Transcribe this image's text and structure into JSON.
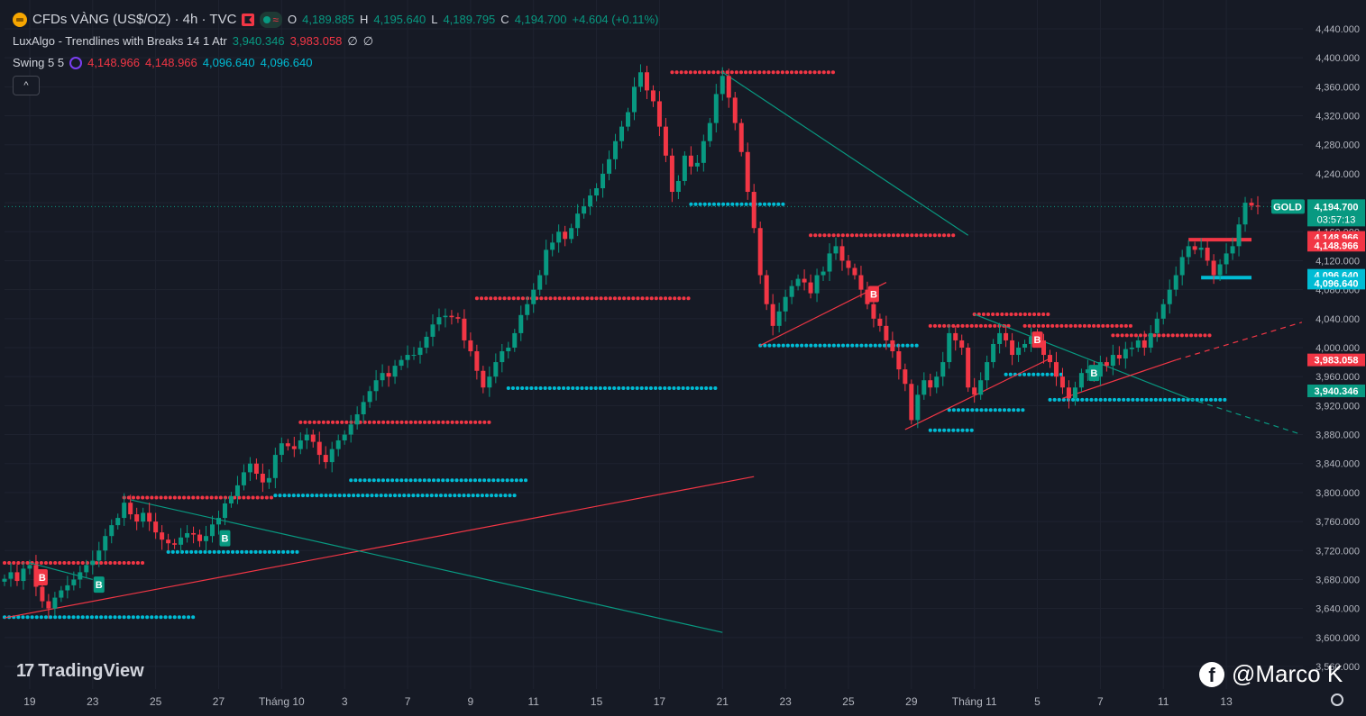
{
  "header": {
    "symbol_title": "CFDs VÀNG (US$/OZ) · 4h · TVC",
    "o_label": "O",
    "o_value": "4,189.885",
    "h_label": "H",
    "h_value": "4,195.640",
    "l_label": "L",
    "l_value": "4,189.795",
    "c_label": "C",
    "c_value": "4,194.700",
    "change": "+4.604 (+0.11%)"
  },
  "indicators": {
    "luxalgo_name": "LuxAlgo - Trendlines with Breaks 14 1 Atr",
    "luxalgo_v1": "3,940.346",
    "luxalgo_v2": "3,983.058",
    "luxalgo_v3": "∅",
    "luxalgo_v4": "∅",
    "swing_name": "Swing 5 5",
    "swing_v1": "4,148.966",
    "swing_v2": "4,148.966",
    "swing_v3": "4,096.640",
    "swing_v4": "4,096.640"
  },
  "collapse_label": "^",
  "branding": {
    "logo_text": "TradingView",
    "logo_mark": "17",
    "watermark": "@Marco K",
    "fb_letter": "f"
  },
  "colors": {
    "bg": "#161a25",
    "up": "#089981",
    "down": "#f23645",
    "cyan": "#00bcd4",
    "grid": "#1f2330"
  },
  "chart_data": {
    "type": "candlestick",
    "title": "CFDs VÀNG (US$/OZ) · 4h · TVC",
    "ylim": [
      3560,
      4440
    ],
    "y_ticks": [
      "4,440.000",
      "4,400.000",
      "4,360.000",
      "4,320.000",
      "4,280.000",
      "4,240.000",
      "4,200.000",
      "4,160.000",
      "4,120.000",
      "4,080.000",
      "4,040.000",
      "4,000.000",
      "3,960.000",
      "3,920.000",
      "3,880.000",
      "3,840.000",
      "3,800.000",
      "3,760.000",
      "3,720.000",
      "3,680.000",
      "3,640.000",
      "3,600.000",
      "3,560.000"
    ],
    "x_ticks": [
      "19",
      "23",
      "25",
      "27",
      "Tháng 10",
      "3",
      "7",
      "9",
      "11",
      "15",
      "17",
      "21",
      "23",
      "25",
      "29",
      "Tháng 11",
      "5",
      "7",
      "11",
      "13"
    ],
    "x_tick_index": [
      4,
      14,
      24,
      34,
      44,
      54,
      64,
      74,
      84,
      94,
      104,
      114,
      124,
      134,
      144,
      154,
      164,
      174,
      184,
      194
    ],
    "closes": [
      3681,
      3690,
      3678,
      3695,
      3700,
      3670,
      3650,
      3640,
      3655,
      3665,
      3672,
      3680,
      3690,
      3700,
      3706,
      3720,
      3740,
      3755,
      3765,
      3786,
      3770,
      3760,
      3772,
      3760,
      3745,
      3735,
      3730,
      3728,
      3738,
      3744,
      3742,
      3733,
      3740,
      3756,
      3765,
      3785,
      3795,
      3810,
      3828,
      3840,
      3826,
      3814,
      3820,
      3852,
      3868,
      3864,
      3860,
      3872,
      3880,
      3870,
      3852,
      3842,
      3860,
      3872,
      3880,
      3894,
      3908,
      3925,
      3940,
      3955,
      3965,
      3960,
      3975,
      3983,
      3990,
      3990,
      4000,
      4015,
      4032,
      4042,
      4044,
      4042,
      4040,
      4010,
      3995,
      3968,
      3945,
      3960,
      3980,
      3995,
      4000,
      4020,
      4045,
      4060,
      4080,
      4100,
      4135,
      4145,
      4160,
      4150,
      4165,
      4185,
      4195,
      4210,
      4220,
      4240,
      4260,
      4285,
      4305,
      4325,
      4360,
      4380,
      4355,
      4340,
      4305,
      4265,
      4215,
      4230,
      4265,
      4250,
      4255,
      4285,
      4310,
      4350,
      4375,
      4345,
      4310,
      4270,
      4215,
      4165,
      4100,
      4060,
      4030,
      4050,
      4070,
      4085,
      4095,
      4090,
      4075,
      4100,
      4105,
      4130,
      4140,
      4120,
      4110,
      4100,
      4080,
      4060,
      4040,
      4030,
      4010,
      3995,
      3970,
      3950,
      3900,
      3935,
      3955,
      3945,
      3960,
      3980,
      4020,
      4010,
      4000,
      3945,
      3935,
      3955,
      3980,
      4005,
      4020,
      4010,
      3990,
      4000,
      4005,
      4015,
      4010,
      3990,
      3980,
      3960,
      3945,
      3930,
      3945,
      3965,
      3970,
      3960,
      3980,
      3975,
      3990,
      3985,
      3998,
      4000,
      4010,
      4000,
      4020,
      4040,
      4060,
      4080,
      4100,
      4125,
      4140,
      4135,
      4138,
      4120,
      4100,
      4115,
      4130,
      4140,
      4170,
      4200,
      4196,
      4195
    ]
  }
}
